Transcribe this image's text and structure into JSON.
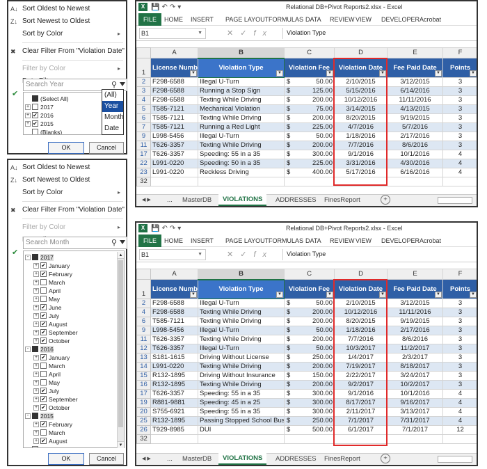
{
  "top_filter": {
    "menu": [
      {
        "icon": "sort-az-icon",
        "label": "Sort Oldest to Newest",
        "disabled": false,
        "arrow": false
      },
      {
        "icon": "sort-za-icon",
        "label": "Sort Newest to Oldest",
        "disabled": false,
        "arrow": false
      },
      {
        "icon": "",
        "label": "Sort by Color",
        "disabled": false,
        "arrow": true
      },
      {
        "icon": "clear-filter-icon",
        "label": "Clear Filter From \"Violation Date\"",
        "disabled": false,
        "arrow": false
      },
      {
        "icon": "",
        "label": "Filter by Color",
        "disabled": true,
        "arrow": true
      },
      {
        "icon": "",
        "label": "Date Filters",
        "disabled": false,
        "arrow": true
      }
    ],
    "search_placeholder": "Search Year",
    "dropdown_options": [
      "(All)",
      "Year",
      "Month",
      "Date"
    ],
    "dropdown_selected": "Year",
    "tree": [
      {
        "level": 0,
        "expander": "",
        "check": "partial",
        "label": "(Select All)"
      },
      {
        "level": 0,
        "expander": "+",
        "check": "",
        "label": "2017"
      },
      {
        "level": 0,
        "expander": "+",
        "check": "checked",
        "label": "2016"
      },
      {
        "level": 0,
        "expander": "+",
        "check": "checked",
        "label": "2015"
      },
      {
        "level": 0,
        "expander": "",
        "check": "",
        "label": "(Blanks)"
      }
    ],
    "ok_label": "OK",
    "cancel_label": "Cancel"
  },
  "bottom_filter": {
    "menu": [
      {
        "icon": "sort-az-icon",
        "label": "Sort Oldest to Newest",
        "disabled": false,
        "arrow": false
      },
      {
        "icon": "sort-za-icon",
        "label": "Sort Newest to Oldest",
        "disabled": false,
        "arrow": false
      },
      {
        "icon": "",
        "label": "Sort by Color",
        "disabled": false,
        "arrow": true
      },
      {
        "icon": "clear-filter-icon",
        "label": "Clear Filter From \"Violation Date\"",
        "disabled": false,
        "arrow": false
      },
      {
        "icon": "",
        "label": "Filter by Color",
        "disabled": true,
        "arrow": true
      },
      {
        "icon": "",
        "label": "Date Filters",
        "disabled": false,
        "arrow": true
      }
    ],
    "search_placeholder": "Search Month",
    "tree": [
      {
        "level": 0,
        "expander": "-",
        "check": "partial",
        "label": "2017"
      },
      {
        "level": 1,
        "expander": "+",
        "check": "checked",
        "label": "January"
      },
      {
        "level": 1,
        "expander": "+",
        "check": "checked",
        "label": "February"
      },
      {
        "level": 1,
        "expander": "+",
        "check": "",
        "label": "March"
      },
      {
        "level": 1,
        "expander": "+",
        "check": "",
        "label": "April"
      },
      {
        "level": 1,
        "expander": "+",
        "check": "",
        "label": "May"
      },
      {
        "level": 1,
        "expander": "+",
        "check": "checked",
        "label": "June"
      },
      {
        "level": 1,
        "expander": "+",
        "check": "checked",
        "label": "July"
      },
      {
        "level": 1,
        "expander": "+",
        "check": "checked",
        "label": "August"
      },
      {
        "level": 1,
        "expander": "+",
        "check": "checked",
        "label": "September"
      },
      {
        "level": 1,
        "expander": "+",
        "check": "checked",
        "label": "October"
      },
      {
        "level": 0,
        "expander": "-",
        "check": "partial",
        "label": "2016"
      },
      {
        "level": 1,
        "expander": "+",
        "check": "checked",
        "label": "January"
      },
      {
        "level": 1,
        "expander": "+",
        "check": "",
        "label": "March"
      },
      {
        "level": 1,
        "expander": "+",
        "check": "",
        "label": "April"
      },
      {
        "level": 1,
        "expander": "+",
        "check": "",
        "label": "May"
      },
      {
        "level": 1,
        "expander": "+",
        "check": "checked",
        "label": "July"
      },
      {
        "level": 1,
        "expander": "+",
        "check": "checked",
        "label": "September"
      },
      {
        "level": 1,
        "expander": "+",
        "check": "checked",
        "label": "October"
      },
      {
        "level": 0,
        "expander": "-",
        "check": "partial",
        "label": "2015"
      },
      {
        "level": 1,
        "expander": "+",
        "check": "checked",
        "label": "February"
      },
      {
        "level": 1,
        "expander": "+",
        "check": "",
        "label": "March"
      },
      {
        "level": 1,
        "expander": "+",
        "check": "checked",
        "label": "August"
      },
      {
        "level": 0,
        "expander": "",
        "check": "",
        "label": "(Blanks)"
      }
    ],
    "ok_label": "OK",
    "cancel_label": "Cancel"
  },
  "excel": {
    "title": "Relational DB+Pivot Reports2.xlsx - Excel",
    "ribbon_tabs": [
      "FILE",
      "HOME",
      "INSERT",
      "PAGE LAYOUT",
      "FORMULAS",
      "DATA",
      "REVIEW",
      "VIEW",
      "DEVELOPER",
      "Acrobat"
    ],
    "name_box": "B1",
    "formula_value": "Violation Type",
    "columns": [
      "A",
      "B",
      "C",
      "D",
      "E",
      "F"
    ],
    "headers": [
      "License Number",
      "Violation Type",
      "Violation Fee",
      "Violation Date",
      "Fee Paid Date",
      "Points"
    ],
    "sheet_tabs": [
      "MasterDB",
      "VIOLATIONS",
      "ADDRESSES",
      "FinesReport"
    ],
    "active_sheet": "VIOLATIONS",
    "tabs_nav": "...",
    "currency_symbol": "$",
    "colors": {
      "header_blue": "#2f5fa6",
      "band": "#dde7f3",
      "excel_green": "#217346",
      "highlight_red": "#e02a2a"
    }
  },
  "top_sheet": {
    "rows": [
      [
        "2",
        "F298-6588",
        "Illegal U-Turn",
        "50.00",
        "2/10/2015",
        "3/12/2015",
        "3"
      ],
      [
        "3",
        "F298-6588",
        "Running a Stop Sign",
        "125.00",
        "5/15/2016",
        "6/14/2016",
        "3"
      ],
      [
        "4",
        "F298-6588",
        "Texting While Driving",
        "200.00",
        "10/12/2016",
        "11/11/2016",
        "3"
      ],
      [
        "5",
        "T585-7121",
        "Mechanical Violation",
        "75.00",
        "3/14/2015",
        "4/13/2015",
        "3"
      ],
      [
        "6",
        "T585-7121",
        "Texting While Driving",
        "200.00",
        "8/20/2015",
        "9/19/2015",
        "3"
      ],
      [
        "7",
        "T585-7121",
        "Running a Red Light",
        "225.00",
        "4/7/2016",
        "5/7/2016",
        "3"
      ],
      [
        "9",
        "L998-5456",
        "Illegal U-Turn",
        "50.00",
        "1/18/2016",
        "2/17/2016",
        "3"
      ],
      [
        "11",
        "T626-3357",
        "Texting While Driving",
        "200.00",
        "7/7/2016",
        "8/6/2016",
        "3"
      ],
      [
        "17",
        "T626-3357",
        "Speeding: 55 in a 35",
        "300.00",
        "9/1/2016",
        "10/1/2016",
        "4"
      ],
      [
        "22",
        "L991-0220",
        "Speeding: 50 in a 35",
        "225.00",
        "3/31/2016",
        "4/30/2016",
        "4"
      ],
      [
        "23",
        "L991-0220",
        "Reckless Driving",
        "400.00",
        "5/17/2016",
        "6/16/2016",
        "4"
      ]
    ],
    "trailing_row": "32"
  },
  "bottom_sheet": {
    "rows": [
      [
        "2",
        "F298-6588",
        "Illegal U-Turn",
        "50.00",
        "2/10/2015",
        "3/12/2015",
        "3"
      ],
      [
        "4",
        "F298-6588",
        "Texting While Driving",
        "200.00",
        "10/12/2016",
        "11/11/2016",
        "3"
      ],
      [
        "6",
        "T585-7121",
        "Texting While Driving",
        "200.00",
        "8/20/2015",
        "9/19/2015",
        "3"
      ],
      [
        "9",
        "L998-5456",
        "Illegal U-Turn",
        "50.00",
        "1/18/2016",
        "2/17/2016",
        "3"
      ],
      [
        "11",
        "T626-3357",
        "Texting While Driving",
        "200.00",
        "7/7/2016",
        "8/6/2016",
        "3"
      ],
      [
        "12",
        "T626-3357",
        "Illegal U-Turn",
        "50.00",
        "10/3/2017",
        "11/2/2017",
        "3"
      ],
      [
        "13",
        "S181-1615",
        "Driving Without License",
        "250.00",
        "1/4/2017",
        "2/3/2017",
        "3"
      ],
      [
        "14",
        "L991-0220",
        "Texting While Driving",
        "200.00",
        "7/19/2017",
        "8/18/2017",
        "3"
      ],
      [
        "15",
        "R132-1895",
        "Driving Without Insurance",
        "150.00",
        "2/22/2017",
        "3/24/2017",
        "3"
      ],
      [
        "16",
        "R132-1895",
        "Texting While Driving",
        "200.00",
        "9/2/2017",
        "10/2/2017",
        "3"
      ],
      [
        "17",
        "T626-3357",
        "Speeding: 55 in a 35",
        "300.00",
        "9/1/2016",
        "10/1/2016",
        "4"
      ],
      [
        "19",
        "R881-9881",
        "Speeding: 45 in a 25",
        "300.00",
        "8/17/2017",
        "9/16/2017",
        "4"
      ],
      [
        "20",
        "S755-6921",
        "Speeding: 55 in a 35",
        "300.00",
        "2/11/2017",
        "3/13/2017",
        "4"
      ],
      [
        "25",
        "R132-1895",
        "Passing Stopped School Bus",
        "250.00",
        "7/1/2017",
        "7/31/2017",
        "4"
      ],
      [
        "26",
        "T929-8985",
        "DUI",
        "500.00",
        "6/1/2017",
        "7/1/2017",
        "12"
      ]
    ],
    "trailing_row": "32"
  }
}
